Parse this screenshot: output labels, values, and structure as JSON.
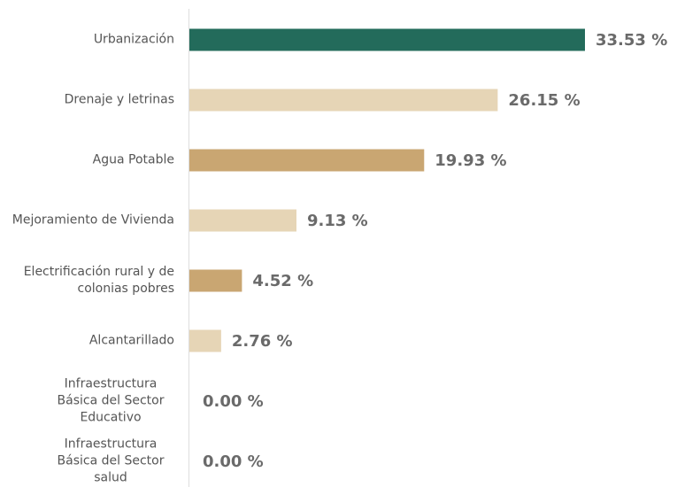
{
  "chart_data": {
    "type": "bar",
    "orientation": "horizontal",
    "categories": [
      "Urbanización",
      "Drenaje y letrinas",
      "Agua Potable",
      "Mejoramiento de Vivienda",
      "Electrificación rural y de colonias pobres",
      "Alcantarillado",
      "Infraestructura Básica del Sector Educativo",
      "Infraestructura Básica del Sector salud"
    ],
    "values": [
      33.53,
      26.15,
      19.93,
      9.13,
      4.52,
      2.76,
      0.0,
      0.0
    ],
    "value_labels": [
      "33.53 %",
      "26.15 %",
      "19.93 %",
      "9.13 %",
      "4.52 %",
      "2.76 %",
      "0.00 %",
      "0.00 %"
    ],
    "colors": [
      "#236b5b",
      "#e6d5b6",
      "#c9a672",
      "#e6d5b6",
      "#c9a672",
      "#e6d5b6",
      "#c9a672",
      "#e6d5b6"
    ]
  }
}
